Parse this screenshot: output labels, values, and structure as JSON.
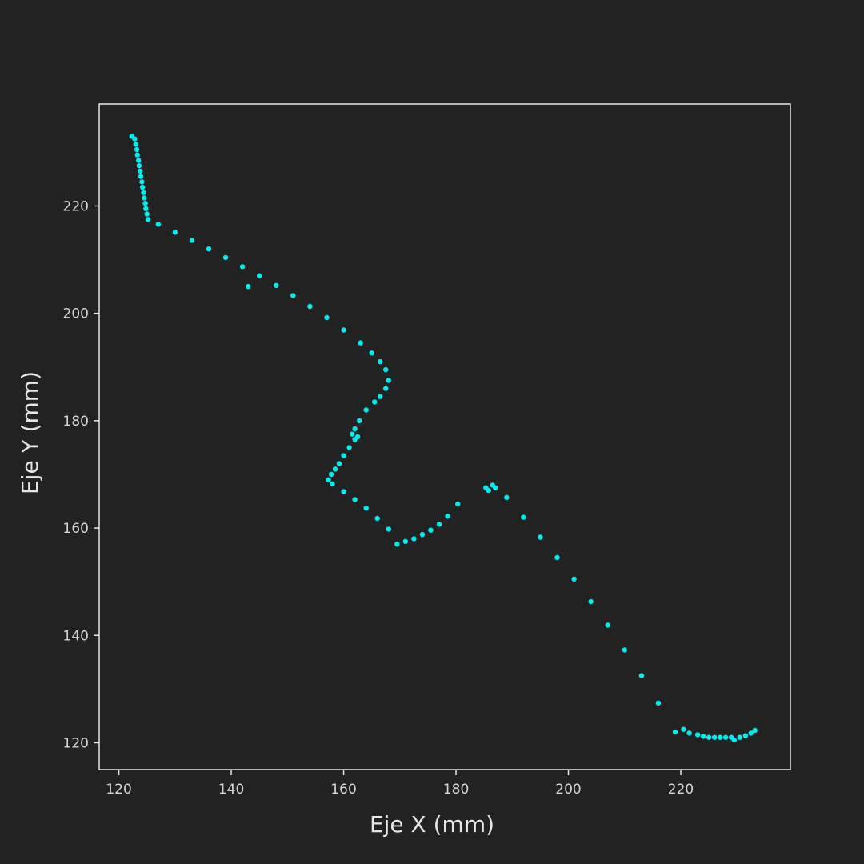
{
  "chart_data": {
    "type": "scatter",
    "title": "",
    "xlabel": "Eje X (mm)",
    "ylabel": "Eje Y (mm)",
    "xlim": [
      116.5,
      239.5
    ],
    "ylim": [
      115,
      239
    ],
    "xticks": [
      120,
      140,
      160,
      180,
      200,
      220
    ],
    "yticks": [
      120,
      140,
      160,
      180,
      200,
      220
    ],
    "grid": false,
    "legend": "none",
    "point_color": "#00eded",
    "background": "#222222",
    "frame_color": "#e8e8e8",
    "series": [
      {
        "points": [
          [
            122.3,
            233.0
          ],
          [
            122.8,
            232.5
          ],
          [
            123.0,
            231.5
          ],
          [
            123.2,
            230.5
          ],
          [
            123.3,
            229.5
          ],
          [
            123.5,
            228.5
          ],
          [
            123.6,
            227.5
          ],
          [
            123.8,
            226.5
          ],
          [
            123.9,
            225.5
          ],
          [
            124.1,
            224.5
          ],
          [
            124.2,
            223.5
          ],
          [
            124.4,
            222.5
          ],
          [
            124.5,
            221.5
          ],
          [
            124.7,
            220.5
          ],
          [
            124.8,
            219.5
          ],
          [
            125.0,
            218.5
          ],
          [
            125.2,
            217.5
          ],
          [
            127,
            216.6
          ],
          [
            130,
            215.1
          ],
          [
            133,
            213.6
          ],
          [
            136,
            212.0
          ],
          [
            139,
            210.4
          ],
          [
            142,
            208.7
          ],
          [
            145,
            207.0
          ],
          [
            148,
            205.2
          ],
          [
            151,
            203.3
          ],
          [
            154,
            201.3
          ],
          [
            157,
            199.2
          ],
          [
            160,
            196.9
          ],
          [
            163,
            194.5
          ],
          [
            165,
            192.6
          ],
          [
            166.5,
            191.0
          ],
          [
            167.5,
            189.5
          ],
          [
            168.0,
            187.5
          ],
          [
            143.0,
            205.0
          ],
          [
            167.5,
            186.0
          ],
          [
            166.5,
            184.5
          ],
          [
            165.5,
            183.5
          ],
          [
            164.0,
            182.0
          ],
          [
            162.8,
            180.0
          ],
          [
            162.0,
            178.5
          ],
          [
            161.5,
            177.5
          ],
          [
            162.0,
            176.5
          ],
          [
            162.5,
            177.0
          ],
          [
            161.0,
            175.0
          ],
          [
            160.0,
            173.5
          ],
          [
            159.2,
            172.0
          ],
          [
            158.5,
            171.0
          ],
          [
            157.8,
            170.0
          ],
          [
            157.3,
            169.0
          ],
          [
            158,
            168.2
          ],
          [
            160,
            166.8
          ],
          [
            162,
            165.3
          ],
          [
            164,
            163.7
          ],
          [
            166,
            161.8
          ],
          [
            168,
            159.8
          ],
          [
            169.5,
            157.0
          ],
          [
            171,
            157.5
          ],
          [
            172.5,
            158.0
          ],
          [
            174,
            158.8
          ],
          [
            175.5,
            159.6
          ],
          [
            177,
            160.7
          ],
          [
            178.5,
            162.2
          ],
          [
            180.3,
            164.5
          ],
          [
            185.3,
            167.5
          ],
          [
            185.8,
            167.0
          ],
          [
            186.5,
            168.0
          ],
          [
            187.0,
            167.5
          ],
          [
            189,
            165.7
          ],
          [
            192,
            162.0
          ],
          [
            195,
            158.3
          ],
          [
            198,
            154.5
          ],
          [
            201,
            150.5
          ],
          [
            204,
            146.3
          ],
          [
            207,
            141.9
          ],
          [
            210,
            137.3
          ],
          [
            213,
            132.5
          ],
          [
            216,
            127.4
          ],
          [
            219,
            122.0
          ],
          [
            220.5,
            122.5
          ],
          [
            221.5,
            121.8
          ],
          [
            223,
            121.5
          ],
          [
            224,
            121.2
          ],
          [
            225,
            121.0
          ],
          [
            226,
            121.0
          ],
          [
            227,
            121.0
          ],
          [
            228,
            121.0
          ],
          [
            229,
            121.0
          ],
          [
            229.5,
            120.5
          ],
          [
            230.5,
            121.0
          ],
          [
            231.5,
            121.3
          ],
          [
            232.5,
            121.8
          ],
          [
            233.2,
            122.3
          ]
        ]
      }
    ]
  }
}
